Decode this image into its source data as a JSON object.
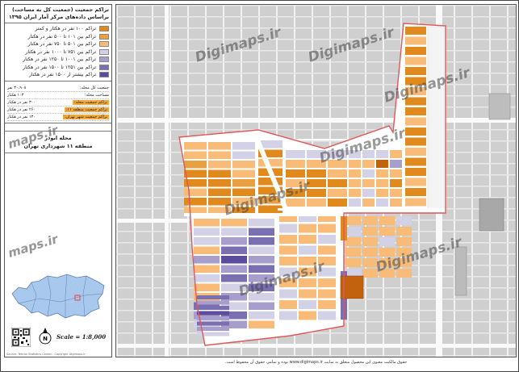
{
  "legend": {
    "title_line1": "تراکم جمعیت (جمعیت کل به مساحت)",
    "title_line2": "براساس داده‌های مرکز آمار ایران ۱۳۹۵",
    "classes": [
      {
        "label": "تراکم ۱۰۰ نفر در هکتار و کمتر",
        "color": "#e08a1e"
      },
      {
        "label": "تراکم بین ۱۰۱ تا ۵۰۰ نفر در هکتار",
        "color": "#e9a040"
      },
      {
        "label": "تراکم بین ۵۰۱ تا ۷۵۰ نفر در هکتار",
        "color": "#f9bc78"
      },
      {
        "label": "تراکم بین ۷۵۱ تا ۱۰۰۰ نفر در هکتار",
        "color": "#d3d1e6"
      },
      {
        "label": "تراکم بین ۱۰۰۱ تا ۱۲۵۰ نفر در هکتار",
        "color": "#a89ecb"
      },
      {
        "label": "تراکم بین ۱۲۵۱ تا ۱۵۰۰ نفر در هکتار",
        "color": "#7a6fb1"
      },
      {
        "label": "تراکم بیشتر از ۱۵۰۰ نفر در هکتار",
        "color": "#5b4a9e"
      }
    ],
    "stats": [
      {
        "label": "جمعیت کل محله:",
        "value": "۳۰،۹۰۸ نفر"
      },
      {
        "label": "مساحت محله:",
        "value": "۱۰۳ هکتار"
      },
      {
        "label": "تراکم جمعیت محله:",
        "value": "۳۰۰ نفر در هکتار"
      },
      {
        "label": "تراکم جمعیت منطقه ۱۱:",
        "value": "۲۶۰ نفر در هکتار"
      },
      {
        "label": "تراکم جمعیت شهر تهران:",
        "value": "۱۳۰ نفر در هکتار"
      }
    ],
    "area_name": "محله ابوذر",
    "area_sub": "منطقه ۱۱ شهرداری تهران",
    "scale": "Scale = 1:8,000",
    "north": "N",
    "credit": "Source: Tehran Statistics Center - Copyright Digimaps.ir"
  },
  "map": {
    "watermark": "Digimaps.ir",
    "side_watermark": "maps.ir"
  },
  "footer": "حقوق مالکیت معنوی این محصول متعلق به سایت www.digimaps.ir بوده و تمامی حقوق آن محفوظ است.",
  "colors": {
    "c1": "#e08a1e",
    "c2": "#e9a040",
    "c3": "#f9bc78",
    "c4": "#d3d1e6",
    "c5": "#a89ecb",
    "c6": "#7a6fb1",
    "c7": "#5b4a9e",
    "dark": "#c2620f",
    "boundary": "#e0575a",
    "base": "#cfcfcf"
  }
}
